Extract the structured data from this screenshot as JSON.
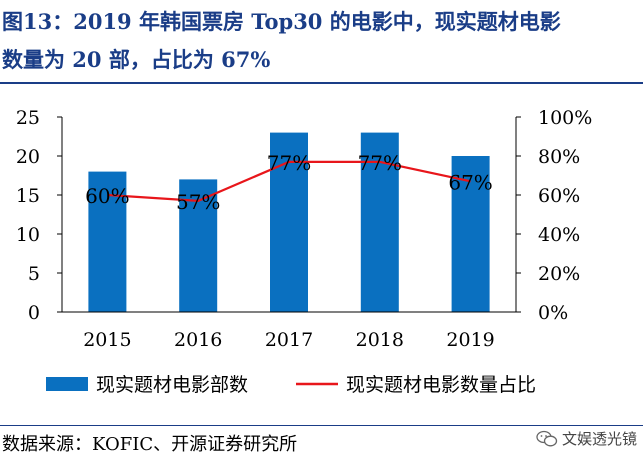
{
  "title": {
    "line1": "图13：2019 年韩国票房 Top30 的电影中，现实题材电影",
    "line2": "数量为 20 部，占比为 67%"
  },
  "source": "数据来源：KOFIC、开源证券研究所",
  "watermark": "文娱透光镜",
  "colors": {
    "bar": "#0a70c0",
    "line": "#e8161b",
    "title": "#1a3d87",
    "axis": "#000000"
  },
  "chart_data": {
    "type": "bar",
    "categories": [
      "2015",
      "2016",
      "2017",
      "2018",
      "2019"
    ],
    "series": [
      {
        "name": "现实题材电影部数",
        "type": "bar",
        "axis": "left",
        "values": [
          18,
          17,
          23,
          23,
          20
        ]
      },
      {
        "name": "现实题材电影数量占比",
        "type": "line",
        "axis": "right",
        "values": [
          60,
          57,
          77,
          77,
          67
        ],
        "labels": [
          "60%",
          "57%",
          "77%",
          "77%",
          "67%"
        ]
      }
    ],
    "y_left": {
      "min": 0,
      "max": 25,
      "ticks": [
        "0",
        "5",
        "10",
        "15",
        "20",
        "25"
      ]
    },
    "y_right": {
      "min": 0,
      "max": 100,
      "ticks": [
        "0%",
        "20%",
        "40%",
        "60%",
        "80%",
        "100%"
      ]
    },
    "legend": "bottom"
  }
}
